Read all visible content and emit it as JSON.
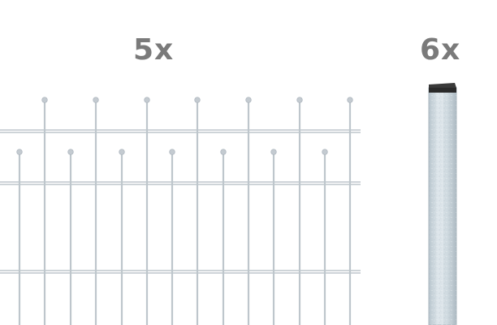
{
  "labels": {
    "panels_quantity": "5x",
    "posts_quantity": "6x"
  },
  "icons": {
    "fence_panel": "fence-panel-icon",
    "post": "fence-post-icon"
  },
  "colors": {
    "label_text": "#7a7a7a",
    "metal_bar": "#c4cbd1",
    "metal_bar_edge": "#a9b2ba",
    "post_fill": "#cfd9df",
    "post_edge": "#aab6be",
    "post_cap": "#2a2a2a",
    "background": "#ffffff"
  }
}
